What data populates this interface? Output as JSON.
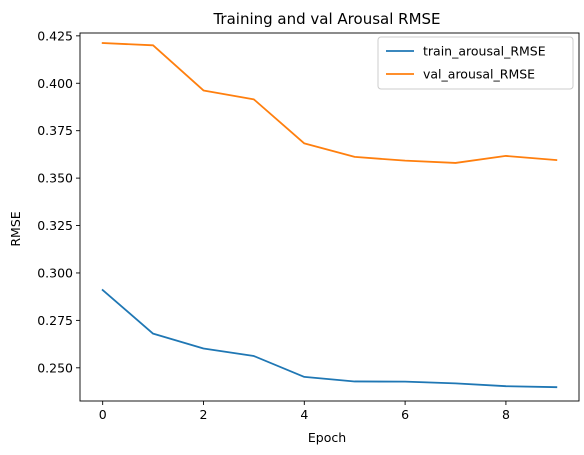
{
  "chart_data": {
    "type": "line",
    "title": "Training and val Arousal RMSE",
    "xlabel": "Epoch",
    "ylabel": "RMSE",
    "x": [
      0,
      1,
      2,
      3,
      4,
      5,
      6,
      7,
      8,
      9
    ],
    "xlim": [
      -0.45,
      9.45
    ],
    "ylim": [
      0.2325,
      0.4265
    ],
    "xticks": [
      0,
      2,
      4,
      6,
      8
    ],
    "yticks": [
      0.25,
      0.275,
      0.3,
      0.325,
      0.35,
      0.375,
      0.4,
      0.425
    ],
    "ytick_labels": [
      "0.250",
      "0.275",
      "0.300",
      "0.325",
      "0.350",
      "0.375",
      "0.400",
      "0.425"
    ],
    "grid": false,
    "legend_position": "top-right",
    "series": [
      {
        "name": "train_arousal_RMSE",
        "color": "#1f77b4",
        "values": [
          0.291,
          0.268,
          0.2602,
          0.2562,
          0.2452,
          0.2428,
          0.2427,
          0.2418,
          0.2403,
          0.2398
        ]
      },
      {
        "name": "val_arousal_RMSE",
        "color": "#ff7f0e",
        "values": [
          0.4212,
          0.42,
          0.3962,
          0.3915,
          0.3683,
          0.3612,
          0.3592,
          0.358,
          0.3617,
          0.3595
        ]
      }
    ]
  }
}
